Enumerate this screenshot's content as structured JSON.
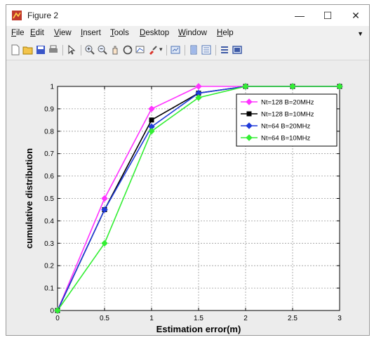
{
  "window": {
    "title": "Figure 2",
    "minimize": "—",
    "maximize": "☐",
    "close": "✕"
  },
  "menu": [
    {
      "first": "F",
      "rest": "ile"
    },
    {
      "first": "E",
      "rest": "dit"
    },
    {
      "first": "V",
      "rest": "iew"
    },
    {
      "first": "I",
      "rest": "nsert"
    },
    {
      "first": "T",
      "rest": "ools"
    },
    {
      "first": "D",
      "rest": "esktop"
    },
    {
      "first": "W",
      "rest": "indow"
    },
    {
      "first": "H",
      "rest": "elp"
    }
  ],
  "toolbar_icons": [
    "new-figure-icon",
    "open-file-icon",
    "save-icon",
    "print-icon",
    "pointer-icon",
    "zoom-in-icon",
    "zoom-out-icon",
    "pan-icon",
    "rotate-3d-icon",
    "data-cursor-icon",
    "brush-icon",
    "link-plot-icon",
    "colorbar-icon",
    "legend-icon",
    "hide-plot-tools-icon",
    "show-plot-tools-icon"
  ],
  "colors": {
    "magenta": "#ff33ff",
    "black": "#000000",
    "blue": "#1f3ad9",
    "green": "#33ee33",
    "axes_bg": "#ffffff",
    "figure_bg": "#ececec"
  },
  "chart_data": {
    "type": "line",
    "title": "",
    "xlabel": "Estimation error(m)",
    "ylabel": "cumulative distribution",
    "xlim": [
      0,
      3
    ],
    "ylim": [
      0,
      1
    ],
    "xticks": [
      "0",
      "0.5",
      "1",
      "1.5",
      "2",
      "2.5",
      "3"
    ],
    "yticks": [
      "0",
      "0.1",
      "0.2",
      "0.3",
      "0.4",
      "0.5",
      "0.6",
      "0.7",
      "0.8",
      "0.9",
      "1"
    ],
    "grid": true,
    "legend_position": "top-right",
    "series": [
      {
        "name": "Nt=128 B=20MHz",
        "color": "#ff33ff",
        "marker": "diamond",
        "x": [
          0,
          0.5,
          1,
          1.5,
          2,
          2.5,
          3
        ],
        "y": [
          0,
          0.5,
          0.9,
          1.0,
          1.0,
          1.0,
          1.0
        ]
      },
      {
        "name": "Nt=128 B=10MHz",
        "color": "#000000",
        "marker": "square",
        "x": [
          0,
          0.5,
          1,
          1.5,
          2,
          2.5,
          3
        ],
        "y": [
          0,
          0.45,
          0.85,
          0.97,
          1.0,
          1.0,
          1.0
        ]
      },
      {
        "name": "Nt=64 B=20MHz",
        "color": "#1f3ad9",
        "marker": "diamond",
        "x": [
          0,
          0.5,
          1,
          1.5,
          2,
          2.5,
          3
        ],
        "y": [
          0,
          0.45,
          0.82,
          0.97,
          1.0,
          1.0,
          1.0
        ]
      },
      {
        "name": "Nt=64 B=10MHz",
        "color": "#33ee33",
        "marker": "diamond",
        "x": [
          0,
          0.5,
          1,
          1.5,
          2,
          2.5,
          3
        ],
        "y": [
          0,
          0.3,
          0.8,
          0.95,
          1.0,
          1.0,
          1.0
        ]
      }
    ]
  }
}
